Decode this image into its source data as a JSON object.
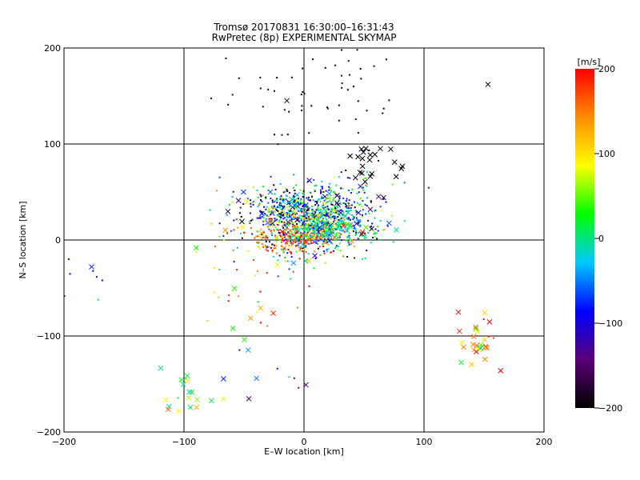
{
  "chart_data": {
    "type": "scatter",
    "title": "Tromsø 20170831 16:30:00–16:31:43",
    "subtitle": "RwPretec (8p) EXPERIMENTAL SKYMAP",
    "xlabel": "E–W location [km]",
    "ylabel": "N–S location [km]",
    "xlim": [
      -200,
      200
    ],
    "ylim": [
      -200,
      200
    ],
    "xticks": [
      -200,
      -100,
      0,
      100,
      200
    ],
    "yticks": [
      -200,
      -100,
      0,
      100,
      200
    ],
    "grid": true,
    "colorbar": {
      "label": "[m/s]",
      "range": [
        -200,
        200
      ],
      "ticks": [
        200,
        100,
        0,
        -100,
        -200
      ],
      "colors": [
        "#000000",
        "#5a0078",
        "#0000ff",
        "#00c8ff",
        "#00ff00",
        "#ffff00",
        "#ff8c00",
        "#ff0000"
      ]
    },
    "clusters": [
      {
        "x": 5,
        "y": 25,
        "sx": 28,
        "sy": 17,
        "n": 900,
        "v": -60,
        "sv": 90,
        "cross": 0.08
      },
      {
        "x": -8,
        "y": 5,
        "sx": 22,
        "sy": 10,
        "n": 250,
        "v": 160,
        "sv": 40,
        "cross": 0.06
      },
      {
        "x": 15,
        "y": 10,
        "sx": 18,
        "sy": 12,
        "n": 250,
        "v": 10,
        "sv": 40,
        "cross": 0.05
      },
      {
        "x": 10,
        "y": 160,
        "sx": 40,
        "sy": 25,
        "n": 60,
        "v": -190,
        "sv": 15,
        "cross": 0.05
      },
      {
        "x": 140,
        "y": -105,
        "sx": 10,
        "sy": 15,
        "n": 30,
        "v": 120,
        "sv": 60,
        "cross": 0.8
      },
      {
        "x": -100,
        "y": -160,
        "sx": 15,
        "sy": 12,
        "n": 18,
        "v": 20,
        "sv": 60,
        "cross": 0.8
      },
      {
        "x": 55,
        "y": 80,
        "sx": 12,
        "sy": 10,
        "n": 25,
        "v": -200,
        "sv": 10,
        "cross": 0.9
      },
      {
        "x": -180,
        "y": -40,
        "sx": 10,
        "sy": 15,
        "n": 8,
        "v": -80,
        "sv": 40,
        "cross": 0.2
      },
      {
        "x": -40,
        "y": -50,
        "sx": 25,
        "sy": 30,
        "n": 40,
        "v": 120,
        "sv": 80,
        "cross": 0.2
      },
      {
        "x": -40,
        "y": -140,
        "sx": 25,
        "sy": 15,
        "n": 10,
        "v": -80,
        "sv": 60,
        "cross": 0.6
      }
    ]
  }
}
